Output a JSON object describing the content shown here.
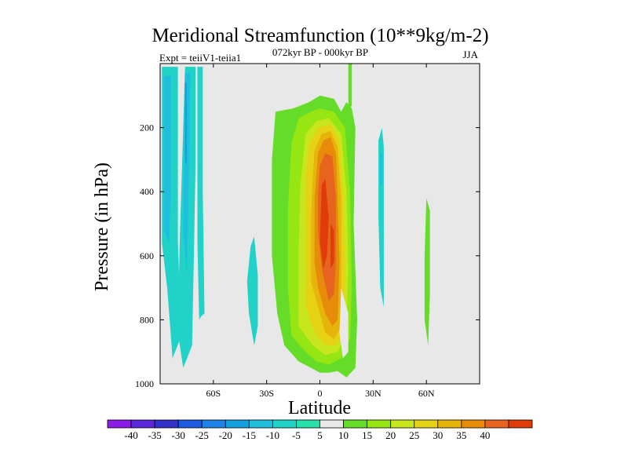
{
  "chart_data": {
    "type": "filled-contour",
    "title": "Meridional Streamfunction (10**9kg/m-2)",
    "subtitle_left": "Expt = teiiV1-teiia1",
    "subtitle_center": "072kyr BP - 000kyr BP",
    "subtitle_right": "JJA",
    "xlabel": "Latitude",
    "ylabel": "Pressure (in hPa)",
    "xlim": [
      -90,
      90
    ],
    "ylim": [
      0,
      1000
    ],
    "y_reversed": true,
    "x_ticks": [
      {
        "value": -60,
        "label": "60S"
      },
      {
        "value": -30,
        "label": "30S"
      },
      {
        "value": 0,
        "label": "0"
      },
      {
        "value": 30,
        "label": "30N"
      },
      {
        "value": 60,
        "label": "60N"
      }
    ],
    "y_ticks": [
      {
        "value": 200,
        "label": "200"
      },
      {
        "value": 400,
        "label": "400"
      },
      {
        "value": 600,
        "label": "600"
      },
      {
        "value": 800,
        "label": "800"
      },
      {
        "value": 1000,
        "label": "1000"
      }
    ],
    "background_color": "#e8e8e8",
    "colorbar": {
      "labels": [
        "-40",
        "-35",
        "-30",
        "-25",
        "-20",
        "-15",
        "-10",
        "-5",
        "5",
        "10",
        "15",
        "20",
        "25",
        "30",
        "35",
        "40"
      ],
      "colors": [
        "#8a1ee6",
        "#5a28d8",
        "#3232c8",
        "#1e5ae0",
        "#1e82e6",
        "#14a0dc",
        "#1ebedc",
        "#20d2c8",
        "#28e0aa",
        "#e8e8e8",
        "#64dc28",
        "#96e614",
        "#c8e61e",
        "#e6d214",
        "#e6b40a",
        "#e68c0a",
        "#e6641e",
        "#e03c0a"
      ]
    },
    "contour_regions": [
      {
        "level": -5,
        "color": "#20d2c8",
        "points": [
          [
            -89,
            10
          ],
          [
            -80,
            10
          ],
          [
            -80,
            560
          ],
          [
            -78,
            850
          ],
          [
            -83,
            920
          ],
          [
            -86,
            700
          ],
          [
            -89,
            560
          ]
        ]
      },
      {
        "level": -5,
        "color": "#20d2c8",
        "points": [
          [
            -76,
            10
          ],
          [
            -70,
            10
          ],
          [
            -70,
            300
          ],
          [
            -71,
            600
          ],
          [
            -72,
            880
          ],
          [
            -77,
            950
          ],
          [
            -80,
            840
          ],
          [
            -79,
            560
          ],
          [
            -77,
            200
          ]
        ]
      },
      {
        "level": -5,
        "color": "#20d2c8",
        "points": [
          [
            -69,
            10
          ],
          [
            -66,
            10
          ],
          [
            -66,
            400
          ],
          [
            -65,
            780
          ],
          [
            -67,
            790
          ],
          [
            -68,
            800
          ],
          [
            -69,
            560
          ]
        ]
      },
      {
        "level": -5,
        "color": "#20d2c8",
        "points": [
          [
            -39,
            570
          ],
          [
            -37,
            540
          ],
          [
            -35,
            660
          ],
          [
            -35,
            820
          ],
          [
            -37,
            880
          ],
          [
            -40,
            780
          ],
          [
            -41,
            680
          ]
        ]
      },
      {
        "level": -5,
        "color": "#20d2c8",
        "points": [
          [
            33,
            240
          ],
          [
            35,
            200
          ],
          [
            36,
            260
          ],
          [
            36,
            560
          ],
          [
            36,
            760
          ],
          [
            34,
            700
          ],
          [
            33,
            480
          ]
        ]
      },
      {
        "level": -10,
        "color": "#1ebedc",
        "points": [
          [
            -88,
            40
          ],
          [
            -84,
            40
          ],
          [
            -84,
            400
          ],
          [
            -85,
            560
          ],
          [
            -88,
            520
          ]
        ]
      },
      {
        "level": -10,
        "color": "#1ebedc",
        "points": [
          [
            -76,
            30
          ],
          [
            -73,
            30
          ],
          [
            -74,
            400
          ],
          [
            -75,
            650
          ],
          [
            -77,
            520
          ]
        ]
      },
      {
        "level": -15,
        "color": "#14a0dc",
        "points": [
          [
            -76,
            60
          ],
          [
            -75,
            60
          ],
          [
            -75,
            320
          ],
          [
            -76,
            300
          ]
        ]
      },
      {
        "level": -10,
        "color": "#1ebedc",
        "points": [
          [
            34,
            280
          ],
          [
            35,
            280
          ],
          [
            35,
            380
          ],
          [
            34,
            380
          ]
        ]
      },
      {
        "level": 5,
        "color": "#64dc28",
        "points": [
          [
            -25,
            150
          ],
          [
            -15,
            140
          ],
          [
            -6,
            120
          ],
          [
            0,
            100
          ],
          [
            8,
            110
          ],
          [
            12,
            150
          ],
          [
            15,
            120
          ],
          [
            18,
            140
          ],
          [
            20,
            200
          ],
          [
            19,
            500
          ],
          [
            21,
            800
          ],
          [
            20,
            950
          ],
          [
            15,
            980
          ],
          [
            10,
            960
          ],
          [
            5,
            965
          ],
          [
            0,
            965
          ],
          [
            -5,
            950
          ],
          [
            -12,
            930
          ],
          [
            -20,
            880
          ],
          [
            -24,
            780
          ],
          [
            -27,
            600
          ],
          [
            -27,
            300
          ]
        ]
      },
      {
        "level": 5,
        "color": "#64dc28",
        "points": [
          [
            16,
            0
          ],
          [
            18,
            0
          ],
          [
            18,
            130
          ],
          [
            16,
            150
          ]
        ]
      },
      {
        "level": 5,
        "color": "#64dc28",
        "points": [
          [
            60,
            420
          ],
          [
            62,
            460
          ],
          [
            62,
            720
          ],
          [
            61,
            880
          ],
          [
            59,
            800
          ],
          [
            59,
            600
          ]
        ]
      },
      {
        "level": 10,
        "color": "#96e614",
        "points": [
          [
            -12,
            170
          ],
          [
            -5,
            150
          ],
          [
            0,
            140
          ],
          [
            8,
            150
          ],
          [
            14,
            200
          ],
          [
            17,
            400
          ],
          [
            18,
            700
          ],
          [
            17,
            860
          ],
          [
            12,
            920
          ],
          [
            5,
            940
          ],
          [
            -2,
            930
          ],
          [
            -8,
            900
          ],
          [
            -16,
            850
          ],
          [
            -18,
            700
          ],
          [
            -18,
            450
          ],
          [
            -16,
            250
          ]
        ]
      },
      {
        "level": 15,
        "color": "#c8e61e",
        "points": [
          [
            -8,
            220
          ],
          [
            -2,
            180
          ],
          [
            5,
            170
          ],
          [
            12,
            220
          ],
          [
            15,
            400
          ],
          [
            16,
            620
          ],
          [
            15,
            840
          ],
          [
            10,
            900
          ],
          [
            3,
            910
          ],
          [
            -4,
            880
          ],
          [
            -12,
            820
          ],
          [
            -12,
            600
          ],
          [
            -11,
            380
          ]
        ]
      },
      {
        "level": 20,
        "color": "#e6d214",
        "points": [
          [
            -6,
            250
          ],
          [
            -1,
            200
          ],
          [
            6,
            190
          ],
          [
            11,
            240
          ],
          [
            13,
            400
          ],
          [
            14,
            620
          ],
          [
            14,
            830
          ],
          [
            9,
            880
          ],
          [
            3,
            880
          ],
          [
            -3,
            840
          ],
          [
            -8,
            760
          ],
          [
            -8,
            540
          ],
          [
            -8,
            350
          ]
        ]
      },
      {
        "level": 25,
        "color": "#e6b40a",
        "points": [
          [
            -3,
            270
          ],
          [
            1,
            220
          ],
          [
            6,
            210
          ],
          [
            10,
            260
          ],
          [
            12,
            420
          ],
          [
            12,
            620
          ],
          [
            12,
            820
          ],
          [
            8,
            860
          ],
          [
            3,
            840
          ],
          [
            -1,
            760
          ],
          [
            -5,
            680
          ],
          [
            -5,
            480
          ],
          [
            -4,
            350
          ]
        ]
      },
      {
        "level": 30,
        "color": "#e68c0a",
        "points": [
          [
            -1,
            280
          ],
          [
            2,
            240
          ],
          [
            6,
            230
          ],
          [
            9,
            280
          ],
          [
            10,
            420
          ],
          [
            11,
            620
          ],
          [
            10,
            800
          ],
          [
            7,
            820
          ],
          [
            3,
            780
          ],
          [
            -1,
            700
          ],
          [
            -3,
            620
          ],
          [
            -3,
            420
          ]
        ]
      },
      {
        "level": 35,
        "color": "#e6641e",
        "points": [
          [
            0,
            320
          ],
          [
            3,
            280
          ],
          [
            7,
            290
          ],
          [
            9,
            420
          ],
          [
            9,
            620
          ],
          [
            8,
            720
          ],
          [
            5,
            740
          ],
          [
            1,
            640
          ],
          [
            -1,
            520
          ],
          [
            -1,
            400
          ]
        ]
      },
      {
        "level": 40,
        "color": "#e03c0a",
        "points": [
          [
            1,
            380
          ],
          [
            3,
            360
          ],
          [
            5,
            480
          ],
          [
            4,
            600
          ],
          [
            2,
            640
          ],
          [
            0,
            560
          ]
        ]
      },
      {
        "level": 40,
        "color": "#e03c0a",
        "points": [
          [
            6,
            500
          ],
          [
            8,
            520
          ],
          [
            8,
            620
          ],
          [
            6,
            640
          ]
        ]
      }
    ],
    "gap_regions": [
      {
        "color": "#e8e8e8",
        "points": [
          [
            12,
            700
          ],
          [
            16,
            780
          ],
          [
            16,
            900
          ],
          [
            13,
            920
          ],
          [
            11,
            840
          ]
        ]
      }
    ]
  }
}
